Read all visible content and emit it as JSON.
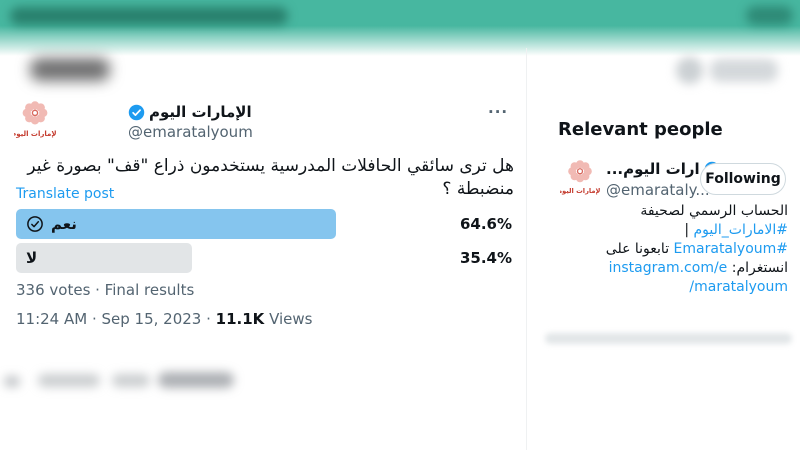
{
  "tweet": {
    "name": "الإمارات اليوم",
    "handle": "@emaratalyoum",
    "more_icon": "···",
    "text": "هل ترى سائقي الحافلات المدرسية يستخدمون ذراع \"قف\" بصورة غير منضبطة ؟",
    "translate_label": "Translate post",
    "poll": {
      "options": [
        {
          "label": "نعم",
          "percent": "64.6%",
          "width_pct": 64.6,
          "voted": true
        },
        {
          "label": "لا",
          "percent": "35.4%",
          "width_pct": 35.4,
          "voted": false
        }
      ],
      "meta": "336 votes · Final results"
    },
    "timestamp": "11:24 AM · Sep 15, 2023 · ",
    "views_count": "11.1K",
    "views_label": " Views"
  },
  "sidebar": {
    "title": "Relevant people",
    "user": {
      "display_name": "...ارات اليوم",
      "handle": "@emarataly...",
      "follow_button_label": "Following",
      "bio": [
        {
          "text": "الحساب الرسمي لصحيفة ",
          "link": false
        },
        {
          "text": "#الامارات_اليوم",
          "link": true
        },
        {
          "text": " | ",
          "link": false
        },
        {
          "text": "#Emaratalyoum",
          "link": true
        },
        {
          "text": " تابعونا على انستغرام: ",
          "link": false
        },
        {
          "text": "instagram.com/emaratalyoum/",
          "link": true
        }
      ]
    }
  },
  "colors": {
    "accent_blue": "#1d9bf0",
    "poll_bar_voted": "#85c5ee",
    "poll_bar_other": "#e2e5e7",
    "topbar_teal": "#47b7a0",
    "text_primary": "#0f1419",
    "text_secondary": "#536471"
  },
  "chart_data": {
    "type": "bar",
    "title": "هل ترى سائقي الحافلات المدرسية يستخدمون ذراع \"قف\" بصورة غير منضبطة ؟",
    "categories": [
      "نعم",
      "لا"
    ],
    "values": [
      64.6,
      35.4
    ],
    "total_votes": 336,
    "status": "Final results"
  }
}
